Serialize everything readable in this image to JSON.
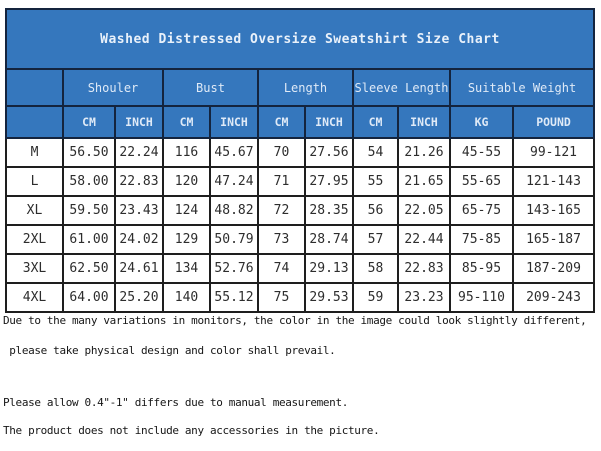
{
  "chart_data": {
    "type": "table",
    "title": "Washed Distressed Oversize Sweatshirt Size Chart",
    "column_groups": [
      {
        "label": "Shouler",
        "span": 2
      },
      {
        "label": "Bust",
        "span": 2
      },
      {
        "label": "Length",
        "span": 2
      },
      {
        "label": "Sleeve Length",
        "span": 2
      },
      {
        "label": "Suitable Weight",
        "span": 2
      }
    ],
    "unit_headers": [
      "CM",
      "INCH",
      "CM",
      "INCH",
      "CM",
      "INCH",
      "CM",
      "INCH",
      "KG",
      "POUND"
    ],
    "size_column_header": "",
    "rows": [
      {
        "size": "M",
        "values": [
          "56.50",
          "22.24",
          "116",
          "45.67",
          "70",
          "27.56",
          "54",
          "21.26",
          "45-55",
          "99-121"
        ]
      },
      {
        "size": "L",
        "values": [
          "58.00",
          "22.83",
          "120",
          "47.24",
          "71",
          "27.95",
          "55",
          "21.65",
          "55-65",
          "121-143"
        ]
      },
      {
        "size": "XL",
        "values": [
          "59.50",
          "23.43",
          "124",
          "48.82",
          "72",
          "28.35",
          "56",
          "22.05",
          "65-75",
          "143-165"
        ]
      },
      {
        "size": "2XL",
        "values": [
          "61.00",
          "24.02",
          "129",
          "50.79",
          "73",
          "28.74",
          "57",
          "22.44",
          "75-85",
          "165-187"
        ]
      },
      {
        "size": "3XL",
        "values": [
          "62.50",
          "24.61",
          "134",
          "52.76",
          "74",
          "29.13",
          "58",
          "22.83",
          "85-95",
          "187-209"
        ]
      },
      {
        "size": "4XL",
        "values": [
          "64.00",
          "25.20",
          "140",
          "55.12",
          "75",
          "29.53",
          "59",
          "23.23",
          "95-110",
          "209-243"
        ]
      }
    ]
  },
  "notes": [
    "Due to the many variations in monitors, the color in the image could look slightly different,",
    " please take physical design and color shall prevail.",
    "Please allow 0.4\"-1\" differs due to manual measurement.",
    "The product does not include any accessories in the picture."
  ],
  "colors": {
    "header_blue": "#3577bd",
    "header_border": "#14243e",
    "body_border": "#1e1e1e",
    "header_text": "#e9f1fa",
    "body_text": "#2d2d2d"
  }
}
